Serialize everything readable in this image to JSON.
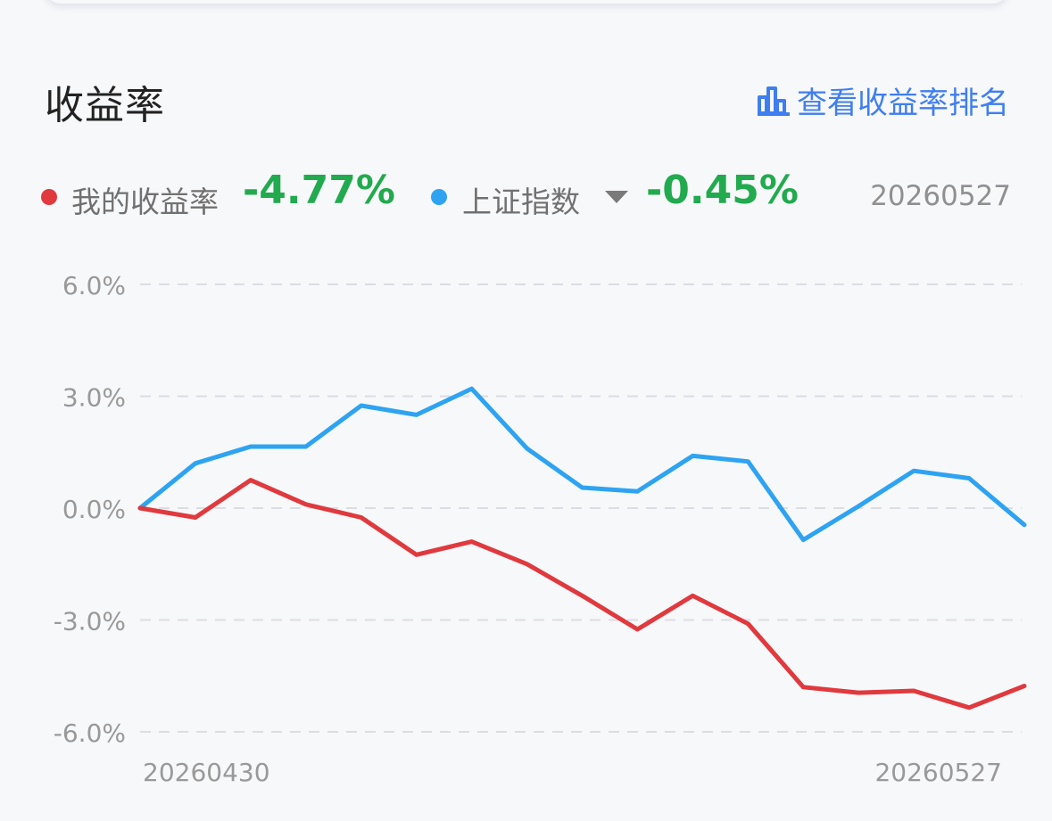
{
  "header": {
    "title": "收益率",
    "rank_link_label": "查看收益率排名",
    "rank_icon": "bar-chart-icon"
  },
  "legend": {
    "my_return": {
      "label": "我的收益率",
      "value": "-4.77%",
      "color": "#e0393e"
    },
    "index": {
      "label": "上证指数",
      "value": "-0.45%",
      "color": "#2ea3f2",
      "dropdown_icon": "caret-down-icon"
    },
    "value_color": "#22aa4e",
    "date": "20260527"
  },
  "chart_data": {
    "type": "line",
    "ylim": [
      -6,
      6
    ],
    "yticks": [
      6,
      3,
      0,
      -3,
      -6
    ],
    "ytick_labels": [
      "6.0%",
      "3.0%",
      "0.0%",
      "-3.0%",
      "-6.0%"
    ],
    "xtick_labels": [
      "20260430",
      "20260527"
    ],
    "grid": "dashed-horizontal",
    "series": [
      {
        "name": "我的收益率",
        "color": "#e0393e",
        "values": [
          0.0,
          -0.25,
          0.75,
          0.1,
          -0.25,
          -1.25,
          -0.9,
          -1.5,
          -2.35,
          -3.25,
          -2.35,
          -3.1,
          -4.8,
          -4.95,
          -4.9,
          -5.35,
          -4.77
        ]
      },
      {
        "name": "上证指数",
        "color": "#2ea3f2",
        "values": [
          0.0,
          1.2,
          1.65,
          1.65,
          2.75,
          2.5,
          3.2,
          1.6,
          0.55,
          0.45,
          1.4,
          1.25,
          -0.85,
          0.05,
          1.0,
          0.8,
          -0.45
        ]
      }
    ]
  }
}
